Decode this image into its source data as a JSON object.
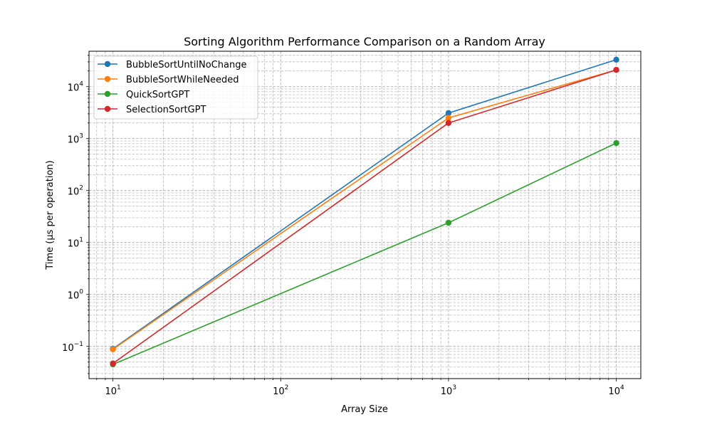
{
  "chart_data": {
    "type": "line",
    "title": "Sorting Algorithm Performance Comparison on a Random Array",
    "xlabel": "Array Size",
    "ylabel": "Time (µs per operation)",
    "xscale": "log",
    "yscale": "log",
    "xlim": [
      7.2,
      14000
    ],
    "ylim": [
      0.024,
      48000
    ],
    "grid": "major and minor, dashed",
    "legend_position": "top-left",
    "x": [
      10,
      1000,
      10000
    ],
    "xticks": [
      {
        "value": 10,
        "base": "10",
        "exp": "1"
      },
      {
        "value": 100,
        "base": "10",
        "exp": "2"
      },
      {
        "value": 1000,
        "base": "10",
        "exp": "3"
      },
      {
        "value": 10000,
        "base": "10",
        "exp": "4"
      }
    ],
    "yticks": [
      {
        "value": 0.1,
        "base": "10",
        "exp": "−1"
      },
      {
        "value": 1,
        "base": "10",
        "exp": "0"
      },
      {
        "value": 10,
        "base": "10",
        "exp": "1"
      },
      {
        "value": 100,
        "base": "10",
        "exp": "2"
      },
      {
        "value": 1000,
        "base": "10",
        "exp": "3"
      },
      {
        "value": 10000,
        "base": "10",
        "exp": "4"
      }
    ],
    "series": [
      {
        "name": "BubbleSortUntilNoChange",
        "color": "#1f77b4",
        "values": [
          0.09,
          3100,
          33000
        ]
      },
      {
        "name": "BubbleSortWhileNeeded",
        "color": "#ff7f0e",
        "values": [
          0.088,
          2500,
          21000
        ]
      },
      {
        "name": "QuickSortGPT",
        "color": "#2ca02c",
        "values": [
          0.045,
          24,
          820
        ]
      },
      {
        "name": "SelectionSortGPT",
        "color": "#d62728",
        "values": [
          0.047,
          2000,
          21000
        ]
      }
    ]
  }
}
